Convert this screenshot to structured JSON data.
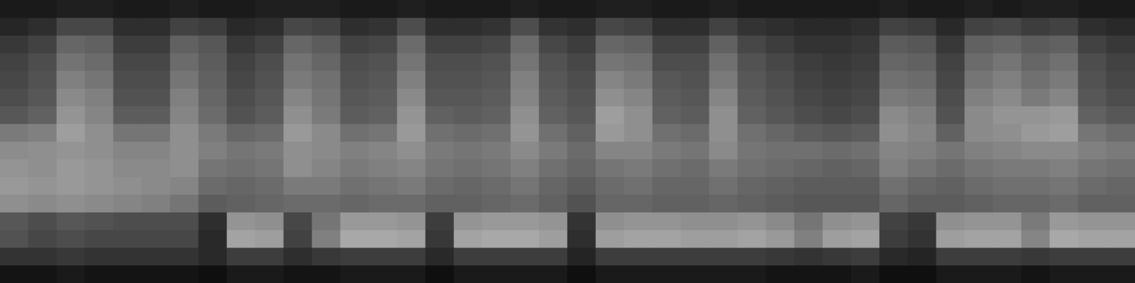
{
  "chart_data": {
    "type": "heatmap",
    "tick_labels": false,
    "grid": false,
    "zlim": [
      0,
      100
    ],
    "cells": [
      [
        10,
        10,
        12,
        12,
        10,
        10,
        12,
        10,
        10,
        12,
        12,
        12,
        10,
        10,
        12,
        10,
        10,
        10,
        12,
        10,
        10,
        12,
        12,
        10,
        10,
        12,
        10,
        10,
        10,
        10,
        10,
        12,
        10,
        10,
        12,
        10,
        12,
        12,
        10,
        10
      ],
      [
        15,
        18,
        28,
        28,
        18,
        18,
        26,
        24,
        16,
        18,
        28,
        26,
        18,
        20,
        30,
        18,
        18,
        20,
        30,
        20,
        18,
        28,
        26,
        18,
        18,
        26,
        20,
        18,
        16,
        16,
        18,
        26,
        24,
        16,
        26,
        28,
        24,
        26,
        18,
        16
      ],
      [
        22,
        26,
        40,
        38,
        24,
        24,
        38,
        34,
        22,
        26,
        40,
        36,
        26,
        28,
        42,
        26,
        26,
        28,
        42,
        28,
        24,
        40,
        38,
        26,
        26,
        38,
        28,
        24,
        20,
        20,
        22,
        36,
        34,
        22,
        38,
        40,
        36,
        38,
        26,
        22
      ],
      [
        26,
        30,
        45,
        42,
        28,
        28,
        42,
        36,
        26,
        30,
        45,
        40,
        30,
        32,
        46,
        30,
        30,
        32,
        46,
        32,
        28,
        46,
        44,
        30,
        30,
        44,
        32,
        28,
        24,
        22,
        24,
        40,
        38,
        26,
        42,
        46,
        40,
        44,
        30,
        26
      ],
      [
        28,
        32,
        50,
        46,
        30,
        30,
        46,
        38,
        28,
        32,
        48,
        44,
        32,
        34,
        50,
        32,
        32,
        34,
        50,
        34,
        30,
        52,
        48,
        34,
        32,
        48,
        34,
        30,
        26,
        24,
        26,
        44,
        42,
        28,
        46,
        50,
        44,
        48,
        32,
        28
      ],
      [
        30,
        34,
        54,
        50,
        32,
        32,
        50,
        40,
        30,
        34,
        52,
        46,
        34,
        36,
        54,
        34,
        34,
        36,
        52,
        36,
        32,
        56,
        52,
        36,
        34,
        52,
        36,
        32,
        28,
        26,
        28,
        48,
        46,
        30,
        50,
        54,
        48,
        52,
        34,
        30
      ],
      [
        34,
        38,
        58,
        52,
        36,
        36,
        52,
        42,
        32,
        36,
        56,
        48,
        36,
        38,
        58,
        38,
        36,
        38,
        56,
        38,
        34,
        62,
        56,
        38,
        36,
        56,
        38,
        34,
        30,
        28,
        30,
        54,
        50,
        32,
        54,
        58,
        58,
        60,
        38,
        34
      ],
      [
        48,
        50,
        62,
        56,
        46,
        46,
        56,
        48,
        40,
        42,
        60,
        54,
        44,
        46,
        60,
        44,
        42,
        44,
        58,
        44,
        38,
        60,
        56,
        44,
        42,
        56,
        44,
        40,
        36,
        34,
        36,
        56,
        52,
        38,
        54,
        56,
        60,
        62,
        46,
        42
      ],
      [
        55,
        56,
        58,
        56,
        52,
        52,
        56,
        50,
        46,
        48,
        56,
        54,
        50,
        52,
        56,
        48,
        46,
        48,
        54,
        48,
        42,
        52,
        52,
        48,
        46,
        54,
        46,
        44,
        44,
        42,
        44,
        52,
        50,
        46,
        50,
        52,
        54,
        54,
        50,
        48
      ],
      [
        58,
        56,
        60,
        58,
        54,
        54,
        56,
        46,
        44,
        46,
        56,
        52,
        48,
        50,
        52,
        46,
        44,
        46,
        50,
        44,
        40,
        46,
        48,
        44,
        42,
        48,
        44,
        42,
        40,
        38,
        40,
        50,
        46,
        42,
        46,
        48,
        48,
        50,
        46,
        44
      ],
      [
        60,
        58,
        60,
        58,
        56,
        54,
        52,
        42,
        40,
        42,
        48,
        48,
        44,
        46,
        48,
        42,
        40,
        42,
        46,
        40,
        36,
        42,
        44,
        40,
        40,
        44,
        40,
        38,
        36,
        36,
        36,
        44,
        40,
        38,
        42,
        44,
        44,
        46,
        42,
        40
      ],
      [
        56,
        54,
        56,
        54,
        52,
        50,
        46,
        36,
        38,
        40,
        42,
        42,
        40,
        42,
        42,
        38,
        38,
        40,
        42,
        38,
        32,
        40,
        40,
        38,
        38,
        40,
        38,
        36,
        34,
        34,
        34,
        40,
        36,
        36,
        38,
        40,
        40,
        42,
        38,
        38
      ],
      [
        34,
        30,
        34,
        32,
        30,
        30,
        30,
        18,
        58,
        56,
        28,
        46,
        60,
        60,
        58,
        24,
        58,
        60,
        60,
        58,
        20,
        56,
        58,
        58,
        56,
        56,
        58,
        54,
        46,
        56,
        58,
        26,
        22,
        56,
        58,
        58,
        48,
        60,
        58,
        58
      ],
      [
        32,
        28,
        30,
        28,
        28,
        28,
        28,
        16,
        64,
        62,
        26,
        50,
        66,
        66,
        64,
        22,
        64,
        66,
        66,
        62,
        18,
        62,
        64,
        64,
        62,
        62,
        64,
        60,
        50,
        62,
        64,
        24,
        20,
        62,
        64,
        64,
        52,
        66,
        64,
        64
      ],
      [
        20,
        20,
        22,
        20,
        20,
        20,
        20,
        16,
        24,
        24,
        18,
        22,
        24,
        24,
        24,
        16,
        24,
        24,
        24,
        24,
        14,
        24,
        24,
        24,
        24,
        24,
        24,
        22,
        20,
        22,
        24,
        16,
        14,
        24,
        24,
        24,
        22,
        24,
        24,
        24
      ],
      [
        8,
        8,
        10,
        8,
        8,
        8,
        8,
        6,
        10,
        10,
        8,
        8,
        10,
        10,
        10,
        6,
        10,
        10,
        10,
        10,
        6,
        10,
        10,
        10,
        10,
        10,
        10,
        8,
        8,
        8,
        10,
        6,
        6,
        10,
        10,
        10,
        8,
        10,
        10,
        10
      ]
    ]
  }
}
